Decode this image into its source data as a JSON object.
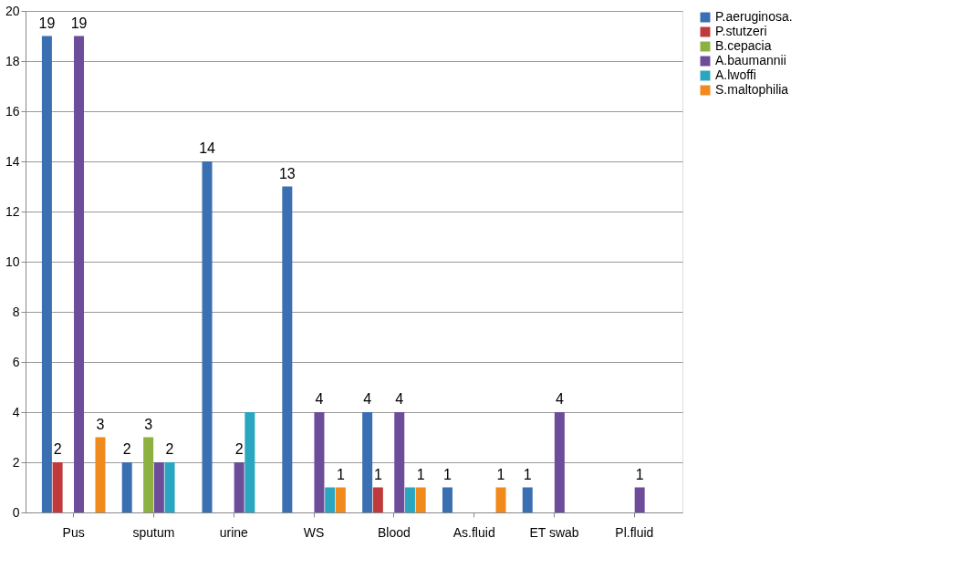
{
  "chart_data": {
    "type": "bar",
    "categories": [
      "Pus",
      "sputum",
      "urine",
      "WS",
      "Blood",
      "As.fluid",
      "ET swab",
      "Pl.fluid"
    ],
    "series": [
      {
        "name": "P.aeruginosa.",
        "color": "#3a6fb2",
        "values": [
          19,
          2,
          14,
          13,
          4,
          1,
          1,
          null
        ],
        "value_labels": [
          "19",
          "2",
          "14",
          "13",
          "4",
          "1",
          "1",
          null
        ]
      },
      {
        "name": "P.stutzeri",
        "color": "#c0393b",
        "values": [
          2,
          null,
          null,
          null,
          1,
          null,
          null,
          null
        ],
        "value_labels": [
          "2",
          null,
          null,
          null,
          "1",
          null,
          null,
          null
        ]
      },
      {
        "name": "B.cepacia",
        "color": "#8db140",
        "values": [
          null,
          3,
          null,
          null,
          null,
          null,
          null,
          null
        ],
        "value_labels": [
          null,
          "3",
          null,
          null,
          null,
          null,
          null,
          null
        ]
      },
      {
        "name": "A.baumannii",
        "color": "#6d4c9a",
        "values": [
          19,
          2,
          2,
          4,
          4,
          null,
          4,
          1
        ],
        "value_labels": [
          "19",
          null,
          "2",
          "4",
          "4",
          null,
          "4",
          "1"
        ]
      },
      {
        "name": "A.lwoffi",
        "color": "#2aa6c0",
        "values": [
          null,
          2,
          4,
          1,
          1,
          null,
          null,
          null
        ],
        "value_labels": [
          null,
          "2",
          null,
          null,
          null,
          null,
          null,
          null
        ]
      },
      {
        "name": "S.maltophilia",
        "color": "#f08a1d",
        "values": [
          3,
          null,
          null,
          1,
          1,
          1,
          null,
          null
        ],
        "value_labels": [
          "3",
          null,
          null,
          "1",
          "1",
          "1",
          null,
          null
        ]
      }
    ],
    "ylim": [
      0,
      20
    ],
    "yticks": [
      0,
      2,
      4,
      6,
      8,
      10,
      12,
      14,
      16,
      18,
      20
    ],
    "grid": "y",
    "legend": "right"
  }
}
